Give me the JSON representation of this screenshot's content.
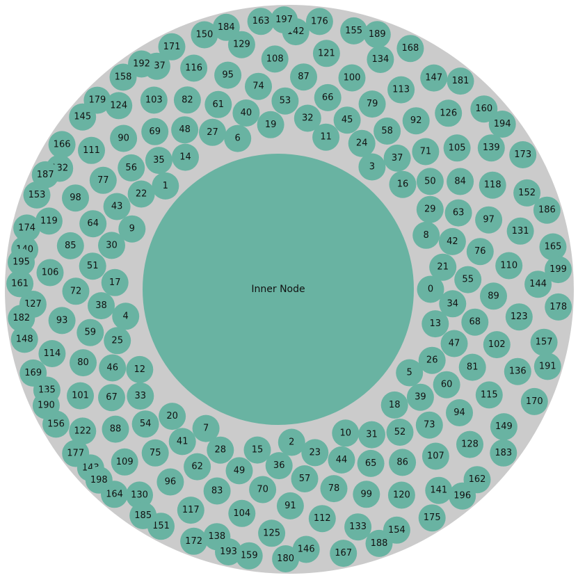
{
  "diagram": {
    "inner_node_label": "Inner Node",
    "colors": {
      "outer_ring": "#cbcbcb",
      "node_fill": "#69b3a2",
      "text": "#111111",
      "background": "#ffffff"
    },
    "node_labels": [
      "0",
      "1",
      "2",
      "3",
      "4",
      "5",
      "6",
      "7",
      "8",
      "9",
      "10",
      "11",
      "12",
      "13",
      "14",
      "15",
      "16",
      "17",
      "18",
      "19",
      "20",
      "21",
      "22",
      "23",
      "24",
      "25",
      "26",
      "27",
      "28",
      "29",
      "30",
      "31",
      "32",
      "33",
      "34",
      "35",
      "36",
      "37",
      "38",
      "39",
      "40",
      "41",
      "42",
      "43",
      "44",
      "45",
      "46",
      "47",
      "48",
      "49",
      "50",
      "51",
      "52",
      "53",
      "54",
      "55",
      "56",
      "57",
      "58",
      "59",
      "60",
      "61",
      "62",
      "63",
      "64",
      "65",
      "66",
      "67",
      "68",
      "69",
      "70",
      "71",
      "72",
      "73",
      "74",
      "75",
      "76",
      "77",
      "78",
      "79",
      "80",
      "81",
      "82",
      "83",
      "84",
      "85",
      "86",
      "87",
      "88",
      "89",
      "90",
      "91",
      "92",
      "93",
      "94",
      "95",
      "96",
      "97",
      "98",
      "99",
      "100",
      "101",
      "102",
      "103",
      "104",
      "105",
      "106",
      "107",
      "108",
      "109",
      "110",
      "111",
      "112",
      "113",
      "114",
      "115",
      "116",
      "117",
      "118",
      "119",
      "120",
      "121",
      "122",
      "123",
      "124",
      "125",
      "126",
      "127",
      "128",
      "129",
      "130",
      "131",
      "132",
      "133",
      "134",
      "135",
      "136",
      "137",
      "138",
      "139",
      "140",
      "141",
      "142",
      "143",
      "144",
      "145",
      "146",
      "147",
      "148",
      "149",
      "150",
      "151",
      "152",
      "153",
      "154",
      "155",
      "156",
      "157",
      "158",
      "159",
      "160",
      "161",
      "162",
      "163",
      "164",
      "165",
      "166",
      "167",
      "168",
      "169",
      "170",
      "171",
      "172",
      "173",
      "174",
      "175",
      "176",
      "177",
      "178",
      "179",
      "180",
      "181",
      "182",
      "183",
      "184",
      "185",
      "186",
      "187",
      "188",
      "189",
      "190",
      "191",
      "192",
      "193",
      "194",
      "195",
      "196",
      "197",
      "198",
      "199"
    ]
  }
}
